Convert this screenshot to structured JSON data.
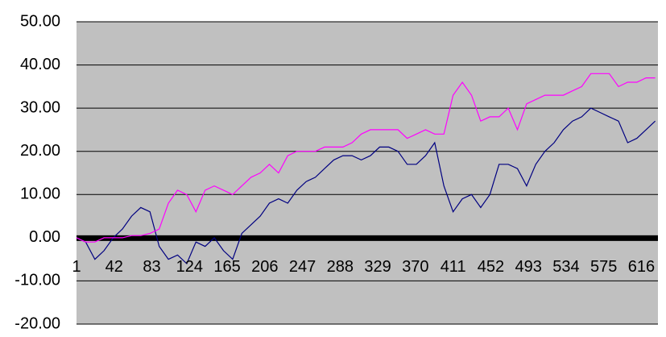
{
  "chart_data": {
    "type": "line",
    "x": [
      1,
      11,
      21,
      31,
      41,
      51,
      61,
      71,
      81,
      91,
      101,
      111,
      121,
      131,
      141,
      151,
      161,
      171,
      181,
      191,
      201,
      211,
      221,
      231,
      241,
      251,
      261,
      271,
      281,
      291,
      301,
      311,
      321,
      331,
      341,
      351,
      361,
      371,
      381,
      391,
      401,
      411,
      421,
      431,
      441,
      451,
      461,
      471,
      481,
      491,
      501,
      511,
      521,
      531,
      541,
      551,
      561,
      571,
      581,
      591,
      601,
      611,
      621,
      631
    ],
    "xlim": [
      1,
      634
    ],
    "xticks": [
      1,
      42,
      83,
      124,
      165,
      206,
      247,
      288,
      329,
      370,
      411,
      452,
      493,
      534,
      575,
      616
    ],
    "ylim": [
      -20,
      50
    ],
    "yticks": [
      {
        "value": -20,
        "label": "-20.00"
      },
      {
        "value": -10,
        "label": "-10.00"
      },
      {
        "value": 0,
        "label": "0.00"
      },
      {
        "value": 10,
        "label": "10.00"
      },
      {
        "value": 20,
        "label": "20.00"
      },
      {
        "value": 30,
        "label": "30.00"
      },
      {
        "value": 40,
        "label": "40.00"
      },
      {
        "value": 50,
        "label": "50.00"
      }
    ],
    "grid": true,
    "series": [
      {
        "color": "#000080",
        "values": [
          0,
          -1,
          -5,
          -3,
          0,
          2,
          5,
          7,
          6,
          -2,
          -5,
          -4,
          -6,
          -1,
          -2,
          0,
          -3,
          -5,
          1,
          3,
          5,
          8,
          9,
          8,
          11,
          13,
          14,
          16,
          18,
          19,
          19,
          18,
          19,
          21,
          21,
          20,
          17,
          17,
          19,
          22,
          12,
          6,
          9,
          10,
          7,
          10,
          17,
          17,
          16,
          12,
          17,
          20,
          22,
          25,
          27,
          28,
          30,
          29,
          28,
          27,
          22,
          23,
          25,
          27
        ]
      },
      {
        "color": "#ff00ff",
        "values": [
          0,
          -1,
          -1,
          0,
          0,
          0,
          0.5,
          0.5,
          1,
          2,
          8,
          11,
          10,
          6,
          11,
          12,
          11,
          10,
          12,
          14,
          15,
          17,
          15,
          19,
          20,
          20,
          20,
          21,
          21,
          21,
          22,
          24,
          25,
          25,
          25,
          25,
          23,
          24,
          25,
          24,
          24,
          33,
          36,
          33,
          27,
          28,
          28,
          30,
          25,
          31,
          32,
          33,
          33,
          33,
          34,
          35,
          38,
          38,
          38,
          35,
          36,
          36,
          37,
          37
        ]
      }
    ]
  }
}
